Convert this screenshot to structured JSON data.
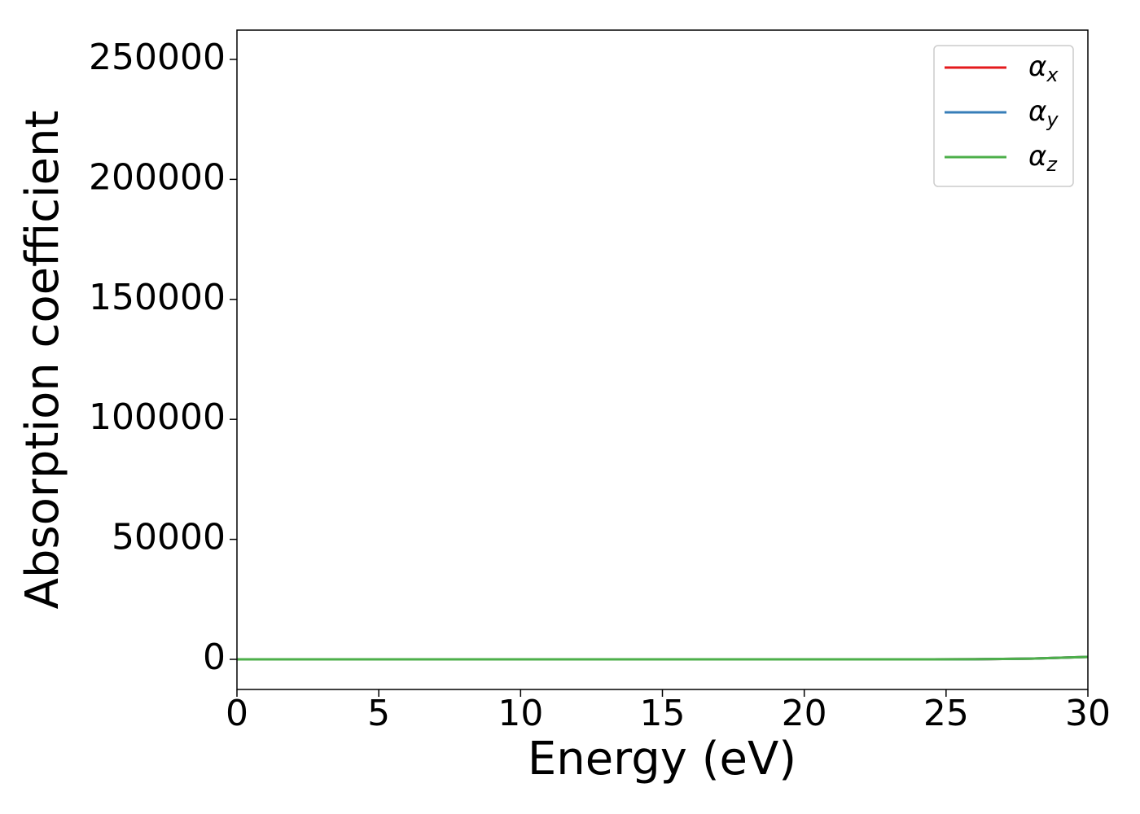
{
  "chart_data": {
    "type": "line",
    "xlabel": "Energy (eV)",
    "ylabel": "Absorption coefficient",
    "x": [
      0,
      2,
      4,
      6,
      8,
      10,
      12,
      14,
      16,
      18,
      20,
      22,
      24,
      26,
      28,
      30
    ],
    "series": [
      {
        "name": "αx",
        "color": "#e41a1c",
        "values": [
          0,
          0,
          0,
          0,
          0,
          0,
          0,
          0,
          0,
          0,
          0,
          0,
          0,
          50,
          300,
          1000
        ]
      },
      {
        "name": "αy",
        "color": "#377eb8",
        "values": [
          0,
          0,
          0,
          0,
          0,
          0,
          0,
          0,
          0,
          0,
          0,
          0,
          0,
          50,
          300,
          1000
        ]
      },
      {
        "name": "αz",
        "color": "#4daf4a",
        "values": [
          0,
          0,
          0,
          0,
          0,
          0,
          0,
          0,
          0,
          0,
          0,
          0,
          0,
          50,
          300,
          1000
        ]
      }
    ],
    "xlim": [
      0,
      30
    ],
    "xticks": [
      0,
      5,
      10,
      15,
      20,
      25,
      30
    ],
    "ylim": [
      -12550,
      262200
    ],
    "yticks": [
      0,
      50000,
      100000,
      150000,
      200000,
      250000
    ],
    "legend": "upper right",
    "grid": false
  }
}
